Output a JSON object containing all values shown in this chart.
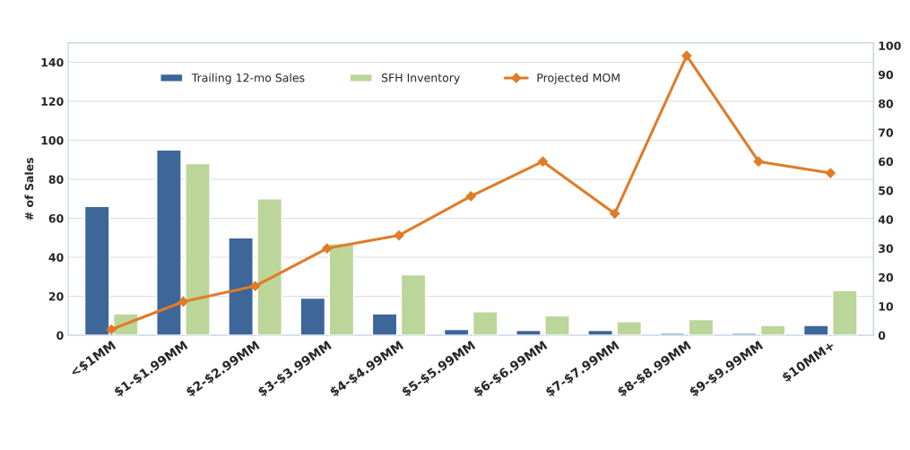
{
  "chart_data": {
    "type": "bar",
    "ylabel": "# of Sales",
    "categories": [
      "<$1MM",
      "$1-$1.99MM",
      "$2-$2.99MM",
      "$3-$3.99MM",
      "$4-$4.99MM",
      "$5-$5.99MM",
      "$6-$6.99MM",
      "$7-$7.99MM",
      "$8-$8.99MM",
      "$9-$9.99MM",
      "$10MM+"
    ],
    "series": [
      {
        "name": "Trailing 12-mo Sales",
        "color": "#3d6699",
        "values": [
          66,
          95,
          50,
          19,
          11,
          3,
          2.5,
          2.5,
          1,
          1,
          5
        ]
      },
      {
        "name": "SFH Inventory",
        "color": "#bcd69a",
        "values": [
          11,
          88,
          70,
          47,
          31,
          12,
          10,
          7,
          8,
          5,
          23
        ]
      },
      {
        "name": "Projected MOM",
        "type": "line",
        "axis": "y2",
        "color": "#e07b28",
        "marker": "diamond",
        "values": [
          2,
          11.6,
          17,
          30,
          34.5,
          48,
          60,
          42,
          96.5,
          60,
          56
        ]
      }
    ],
    "ylim": [
      0,
      150
    ],
    "yticks": [
      0,
      20,
      40,
      60,
      80,
      100,
      120,
      140
    ],
    "y2lim": [
      0,
      101
    ],
    "y2ticks": [
      0,
      10,
      20,
      30,
      40,
      50,
      60,
      70,
      80,
      90,
      100
    ],
    "grid": "y",
    "legend": "top"
  }
}
